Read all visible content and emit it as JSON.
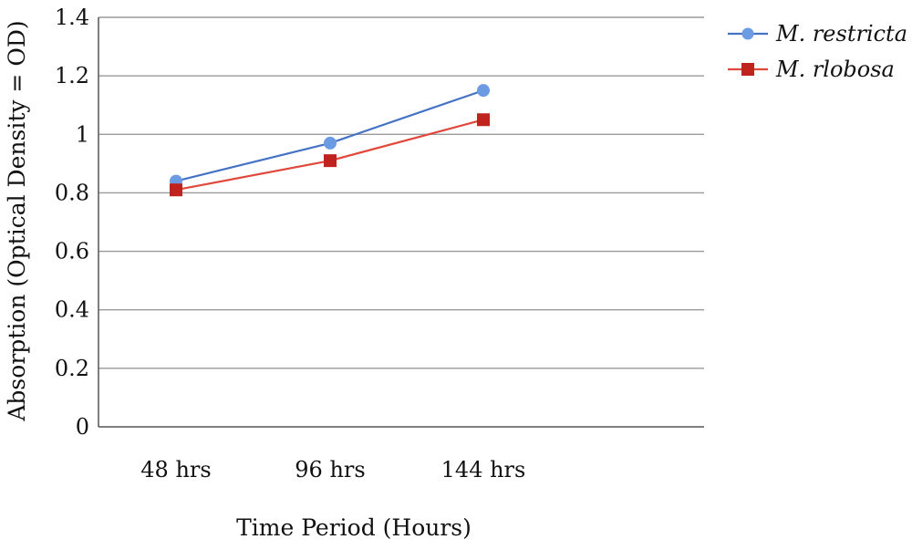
{
  "chart_data": {
    "type": "line",
    "title": "",
    "xlabel": "Time Period (Hours)",
    "ylabel": "Absorption (Optical Density = OD)",
    "categories": [
      "48 hrs",
      "96 hrs",
      "144 hrs"
    ],
    "ylim": [
      0,
      1.4
    ],
    "yticks": [
      0,
      0.2,
      0.4,
      0.6,
      0.8,
      1,
      1.2,
      1.4
    ],
    "ytick_labels": [
      "0",
      "0.2",
      "0.4",
      "0.6",
      "0.8",
      "1",
      "1.2",
      "1.4"
    ],
    "grid": true,
    "legend_position": "top-right",
    "series": [
      {
        "name": "M. restricta",
        "values": [
          0.84,
          0.97,
          1.15
        ],
        "color": "#4472C4",
        "marker_color": "#6A9BE3",
        "marker": "circle"
      },
      {
        "name": "M. rlobosa",
        "values": [
          0.81,
          0.91,
          1.05
        ],
        "color": "#E0483C",
        "marker_color": "#C0221E",
        "marker": "square"
      }
    ]
  }
}
